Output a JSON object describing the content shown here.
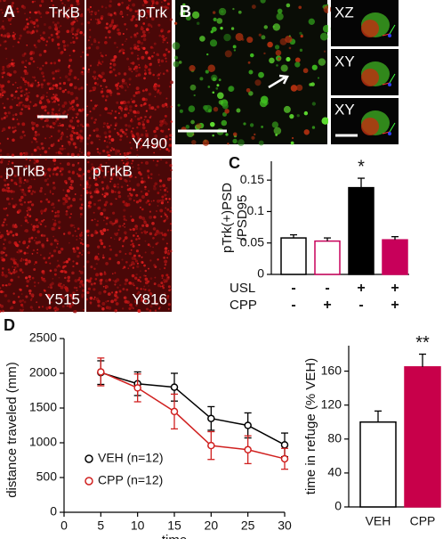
{
  "figure": {
    "panel_labels": [
      "A",
      "B",
      "C",
      "D"
    ],
    "image_labels": {
      "trkb": "TrkB",
      "ptrk": "pTrk",
      "y490": "Y490",
      "ptrkb_1": "pTrkB",
      "y515": "Y515",
      "ptrkb_2": "pTrkB",
      "y816": "Y816",
      "xz": "XZ",
      "xy_1": "XY",
      "xy_2": "XY"
    }
  },
  "chart_data": [
    {
      "type": "bar",
      "y_label": [
        "pTrk(+)PSD",
        "/PSD95"
      ],
      "categories": [
        null,
        null,
        null,
        null
      ],
      "values": [
        0.058,
        0.053,
        0.138,
        0.055
      ],
      "errors": [
        0.005,
        0.005,
        0.015,
        0.005
      ],
      "colors": [
        "#ffffff",
        "#ffffff",
        "#000000",
        "#c8005a"
      ],
      "edge_colors": [
        "#000000",
        "#c8005a",
        "#000000",
        "#c8005a"
      ],
      "ylim": [
        0,
        0.18
      ],
      "yticks": [
        0,
        0.05,
        0.1,
        0.15
      ],
      "annotations": [
        {
          "index": 2,
          "text": "*"
        }
      ],
      "conditions": [
        {
          "name": "USL",
          "signs": [
            "-",
            "-",
            "+",
            "+"
          ]
        },
        {
          "name": "CPP",
          "signs": [
            "-",
            "+",
            "-",
            "+"
          ]
        }
      ]
    },
    {
      "type": "line",
      "x_label": "time",
      "y_label": "distance traveled (mm)",
      "x": [
        5,
        10,
        15,
        20,
        25,
        30
      ],
      "series": [
        {
          "name": "VEH (n=12)",
          "color": "#000000",
          "values": [
            2010,
            1850,
            1800,
            1350,
            1250,
            970
          ],
          "errors": [
            170,
            170,
            200,
            170,
            180,
            170
          ]
        },
        {
          "name": "CPP (n=12)",
          "color": "#d0201f",
          "values": [
            2020,
            1790,
            1450,
            960,
            900,
            770
          ],
          "errors": [
            200,
            200,
            250,
            200,
            200,
            150
          ]
        }
      ],
      "xlim": [
        0,
        30
      ],
      "xticks": [
        0,
        5,
        10,
        15,
        20,
        25,
        30
      ],
      "ylim": [
        0,
        2500
      ],
      "yticks": [
        0,
        500,
        1000,
        1500,
        2000,
        2500
      ],
      "legend": "lower left"
    },
    {
      "type": "bar",
      "y_label": "time in refuge (% VEH)",
      "categories": [
        "VEH",
        "CPP"
      ],
      "values": [
        100,
        165
      ],
      "errors": [
        13,
        15
      ],
      "colors": [
        "#ffffff",
        "#c8004a"
      ],
      "edge_colors": [
        "#000000",
        "#c8004a"
      ],
      "ylim": [
        0,
        190
      ],
      "yticks": [
        0,
        40,
        80,
        120,
        160
      ],
      "annotations": [
        {
          "index": 1,
          "text": "**"
        }
      ]
    }
  ]
}
